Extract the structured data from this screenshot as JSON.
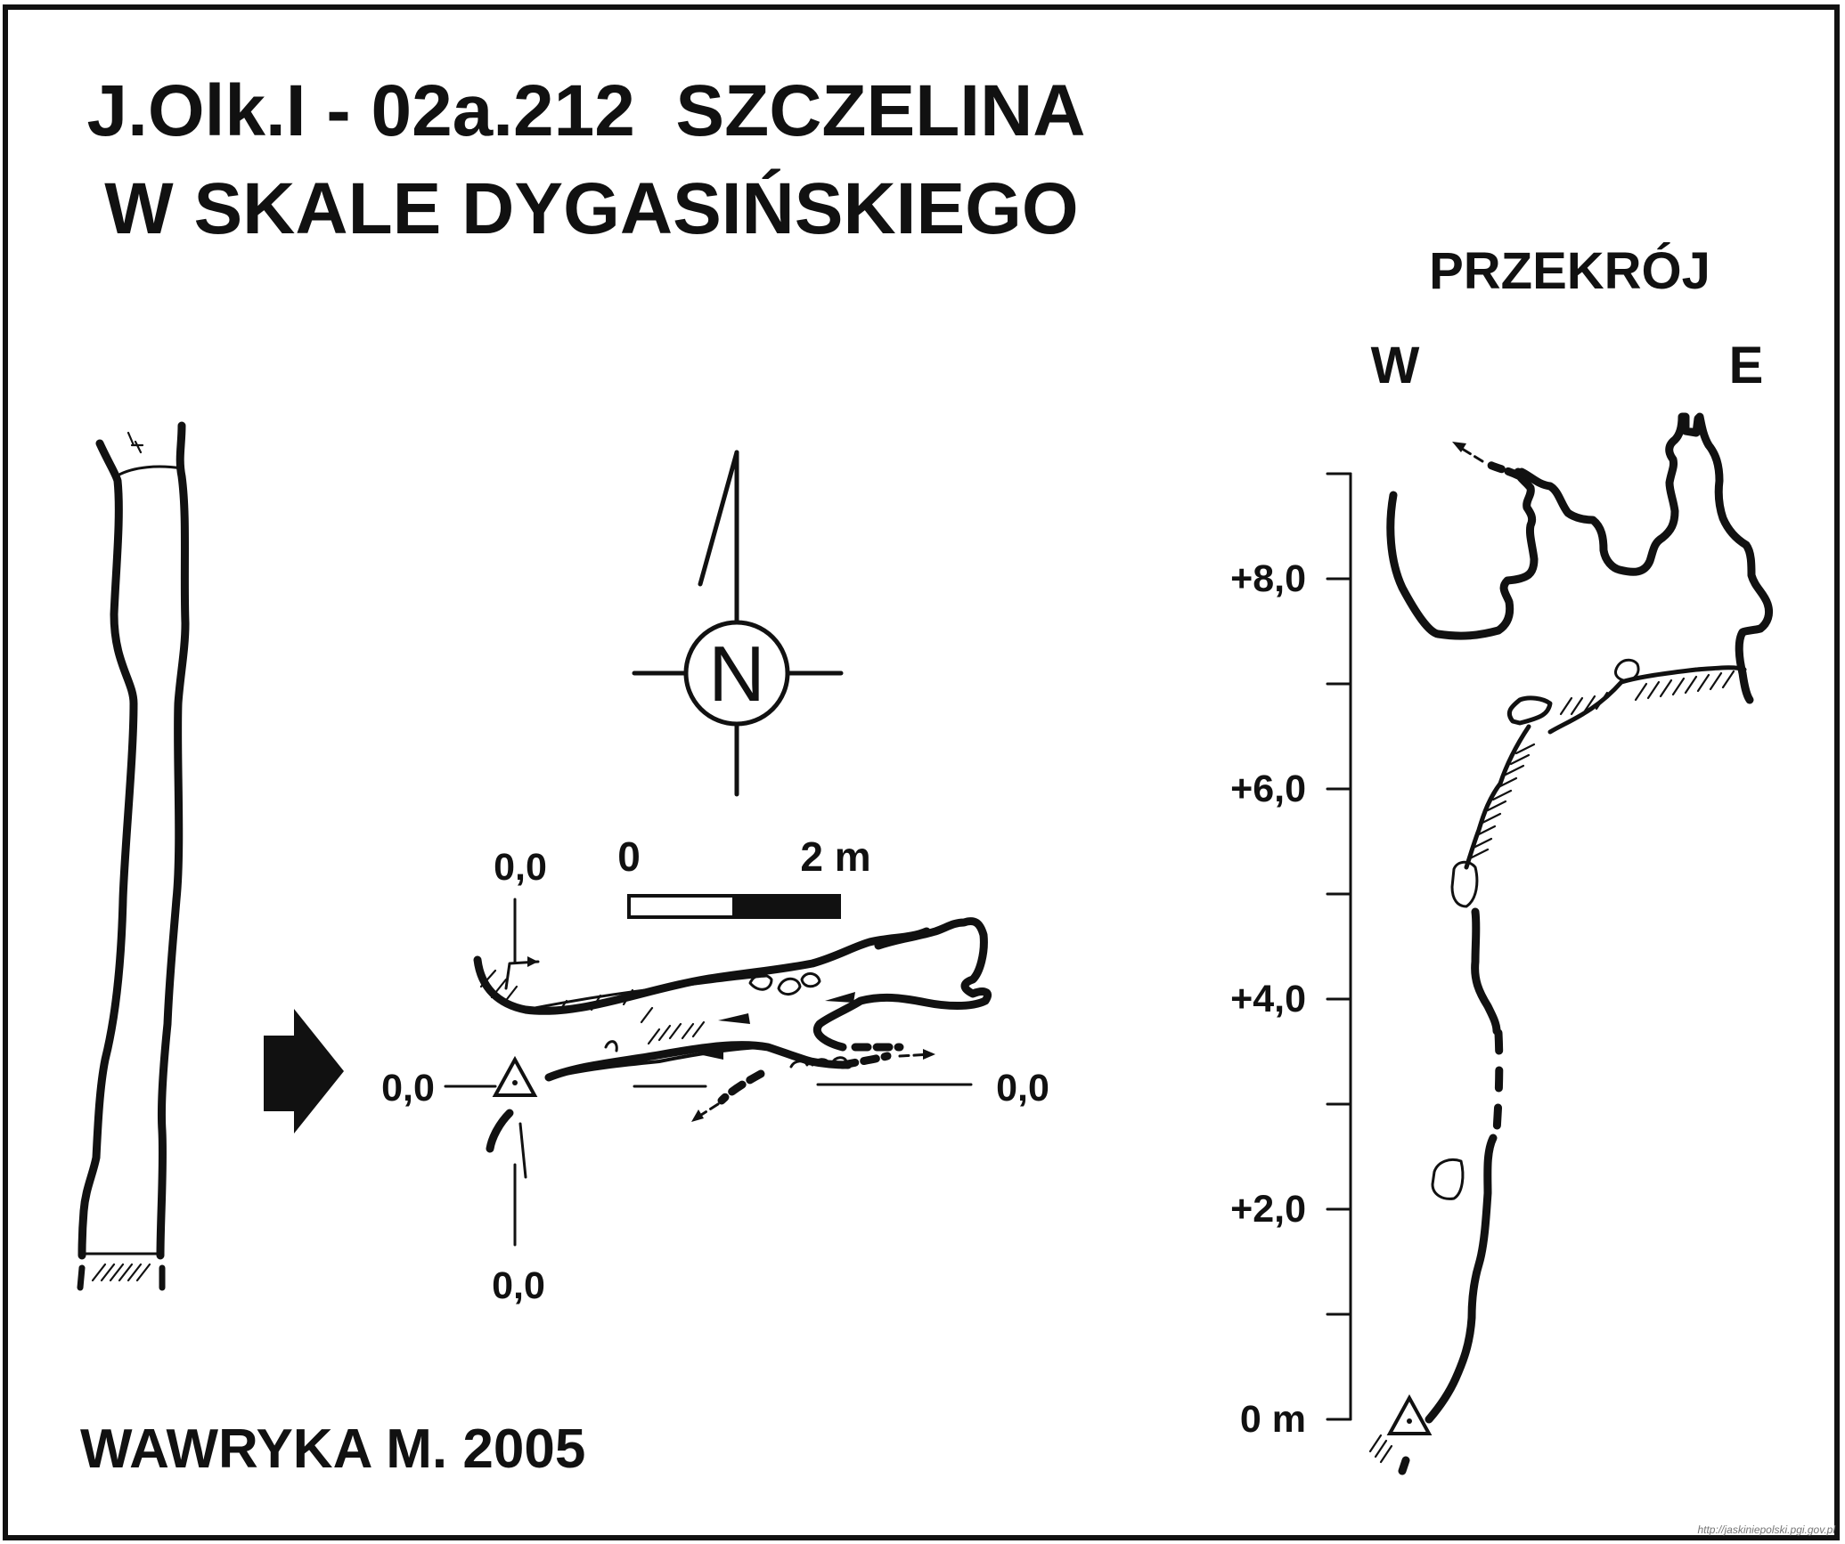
{
  "title": {
    "line1": "J.Olk.I - 02a.212  SZCZELINA",
    "line2": "W SKALE DYGASIŃSKIEGO"
  },
  "section": {
    "title": "PRZEKRÓJ",
    "west": "W",
    "east": "E",
    "height_labels": [
      "+8,0",
      "+6,0",
      "+4,0",
      "+2,0",
      "0 m"
    ]
  },
  "plan": {
    "north_symbol": "N",
    "scale": {
      "start": "0",
      "end": "2 m"
    },
    "datum_labels": {
      "top": "0,0",
      "left": "0,0",
      "right": "0,0",
      "bottom": "0,0"
    }
  },
  "author": "WAWRYKA M. 2005",
  "source_url": "http://jaskiniepolski.pgi.gov.pl",
  "colors": {
    "ink": "#111111",
    "background": "#ffffff"
  }
}
